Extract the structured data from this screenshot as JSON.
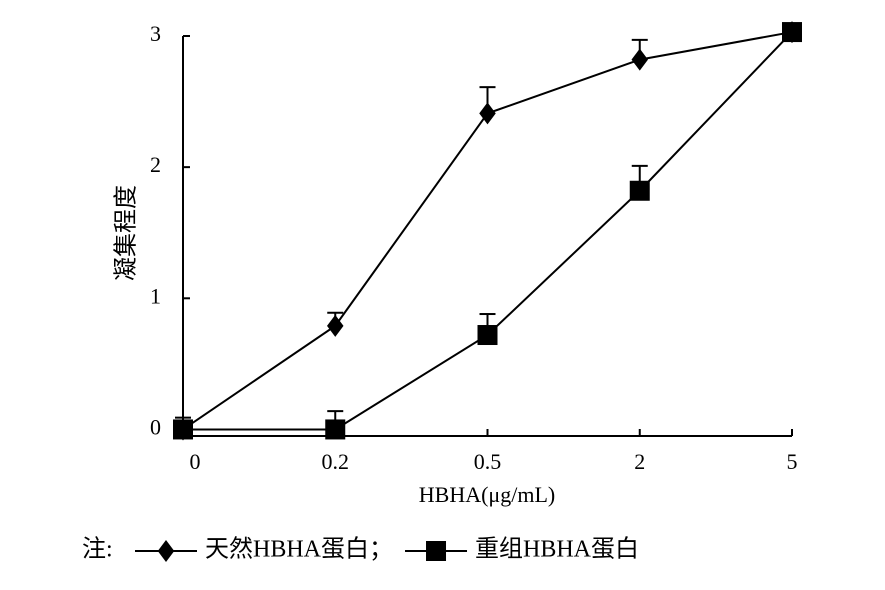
{
  "chart_data": {
    "type": "line",
    "y_label": "凝集程度",
    "x_label": "HBHA(μg/mL)",
    "categories": [
      "0",
      "0.2",
      "0.5",
      "2",
      "5"
    ],
    "series": [
      {
        "name": "天然HBHA蛋白",
        "color": "#000000",
        "marker": "diamond",
        "values": [
          0,
          0.79,
          2.41,
          2.82,
          3.03
        ],
        "errors": [
          0.09,
          0.1,
          0.2,
          0.15,
          null
        ]
      },
      {
        "name": "重组HBHA蛋白",
        "color": "#000000",
        "marker": "square",
        "values": [
          0,
          0,
          0.72,
          1.82,
          3.03
        ],
        "errors": [
          null,
          0.14,
          0.16,
          0.19,
          null
        ]
      }
    ],
    "ylim": [
      -0.05,
      3
    ],
    "yticks": [
      0,
      1,
      2,
      3
    ],
    "legend_prefix": "注:",
    "legend_separator": "；",
    "legend": "bottom"
  }
}
